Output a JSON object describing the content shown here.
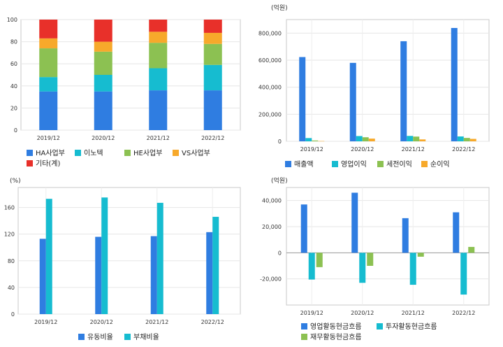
{
  "chart_data": [
    {
      "type": "bar",
      "stacked": true,
      "categories": [
        "2019/12",
        "2020/12",
        "2021/12",
        "2022/12"
      ],
      "ylim": [
        0,
        100
      ],
      "yticks": [
        "0",
        "20",
        "40",
        "60",
        "80",
        "100"
      ],
      "unit": "",
      "series": [
        {
          "name": "HA사업부",
          "color": "#2f7de1",
          "values": [
            35,
            35,
            36,
            36
          ]
        },
        {
          "name": "이노텍",
          "color": "#16bcd0",
          "values": [
            13,
            15,
            20,
            23
          ]
        },
        {
          "name": "HE사업부",
          "color": "#8cc152",
          "values": [
            26,
            21,
            23,
            19
          ]
        },
        {
          "name": "VS사업부",
          "color": "#f7a92b",
          "values": [
            9,
            9,
            10,
            10
          ]
        },
        {
          "name": "기타(계)",
          "color": "#e8302a",
          "values": [
            17,
            20,
            11,
            12
          ]
        }
      ]
    },
    {
      "type": "bar",
      "categories": [
        "2019/12",
        "2020/12",
        "2021/12",
        "2022/12"
      ],
      "ylim": [
        0,
        900000
      ],
      "yticks": [
        "0",
        "200,000",
        "400,000",
        "600,000",
        "800,000"
      ],
      "unit": "(억원)",
      "series": [
        {
          "name": "매출액",
          "color": "#2f7de1",
          "values": [
            623000,
            580000,
            740000,
            838000
          ]
        },
        {
          "name": "영업이익",
          "color": "#16bcd0",
          "values": [
            24000,
            39000,
            40000,
            36000
          ]
        },
        {
          "name": "세전이익",
          "color": "#8cc152",
          "values": [
            6000,
            30000,
            35000,
            25000
          ]
        },
        {
          "name": "순이익",
          "color": "#f7a92b",
          "values": [
            2000,
            20000,
            14000,
            18000
          ]
        }
      ]
    },
    {
      "type": "bar",
      "categories": [
        "2019/12",
        "2020/12",
        "2021/12",
        "2022/12"
      ],
      "ylim": [
        0,
        190
      ],
      "yticks": [
        "0",
        "40",
        "80",
        "120",
        "160"
      ],
      "unit": "(%)",
      "series": [
        {
          "name": "유동비율",
          "color": "#2f7de1",
          "values": [
            113,
            116,
            117,
            123
          ]
        },
        {
          "name": "부채비율",
          "color": "#16bcd0",
          "values": [
            173,
            175,
            167,
            146
          ]
        }
      ]
    },
    {
      "type": "bar",
      "categories": [
        "2019/12",
        "2020/12",
        "2021/12",
        "2022/12"
      ],
      "ylim": [
        -40000,
        50000
      ],
      "yticks": [
        "-20,000",
        "0",
        "20,000",
        "40,000"
      ],
      "unit": "(억원)",
      "series": [
        {
          "name": "영업활동현금흐름",
          "color": "#2f7de1",
          "values": [
            37000,
            46000,
            26500,
            31000
          ]
        },
        {
          "name": "투자활동현금흐름",
          "color": "#16bcd0",
          "values": [
            -20500,
            -23000,
            -24500,
            -32000
          ]
        },
        {
          "name": "재무활동현금흐름",
          "color": "#8cc152",
          "values": [
            -11000,
            -10000,
            -3000,
            4500
          ]
        }
      ]
    }
  ]
}
